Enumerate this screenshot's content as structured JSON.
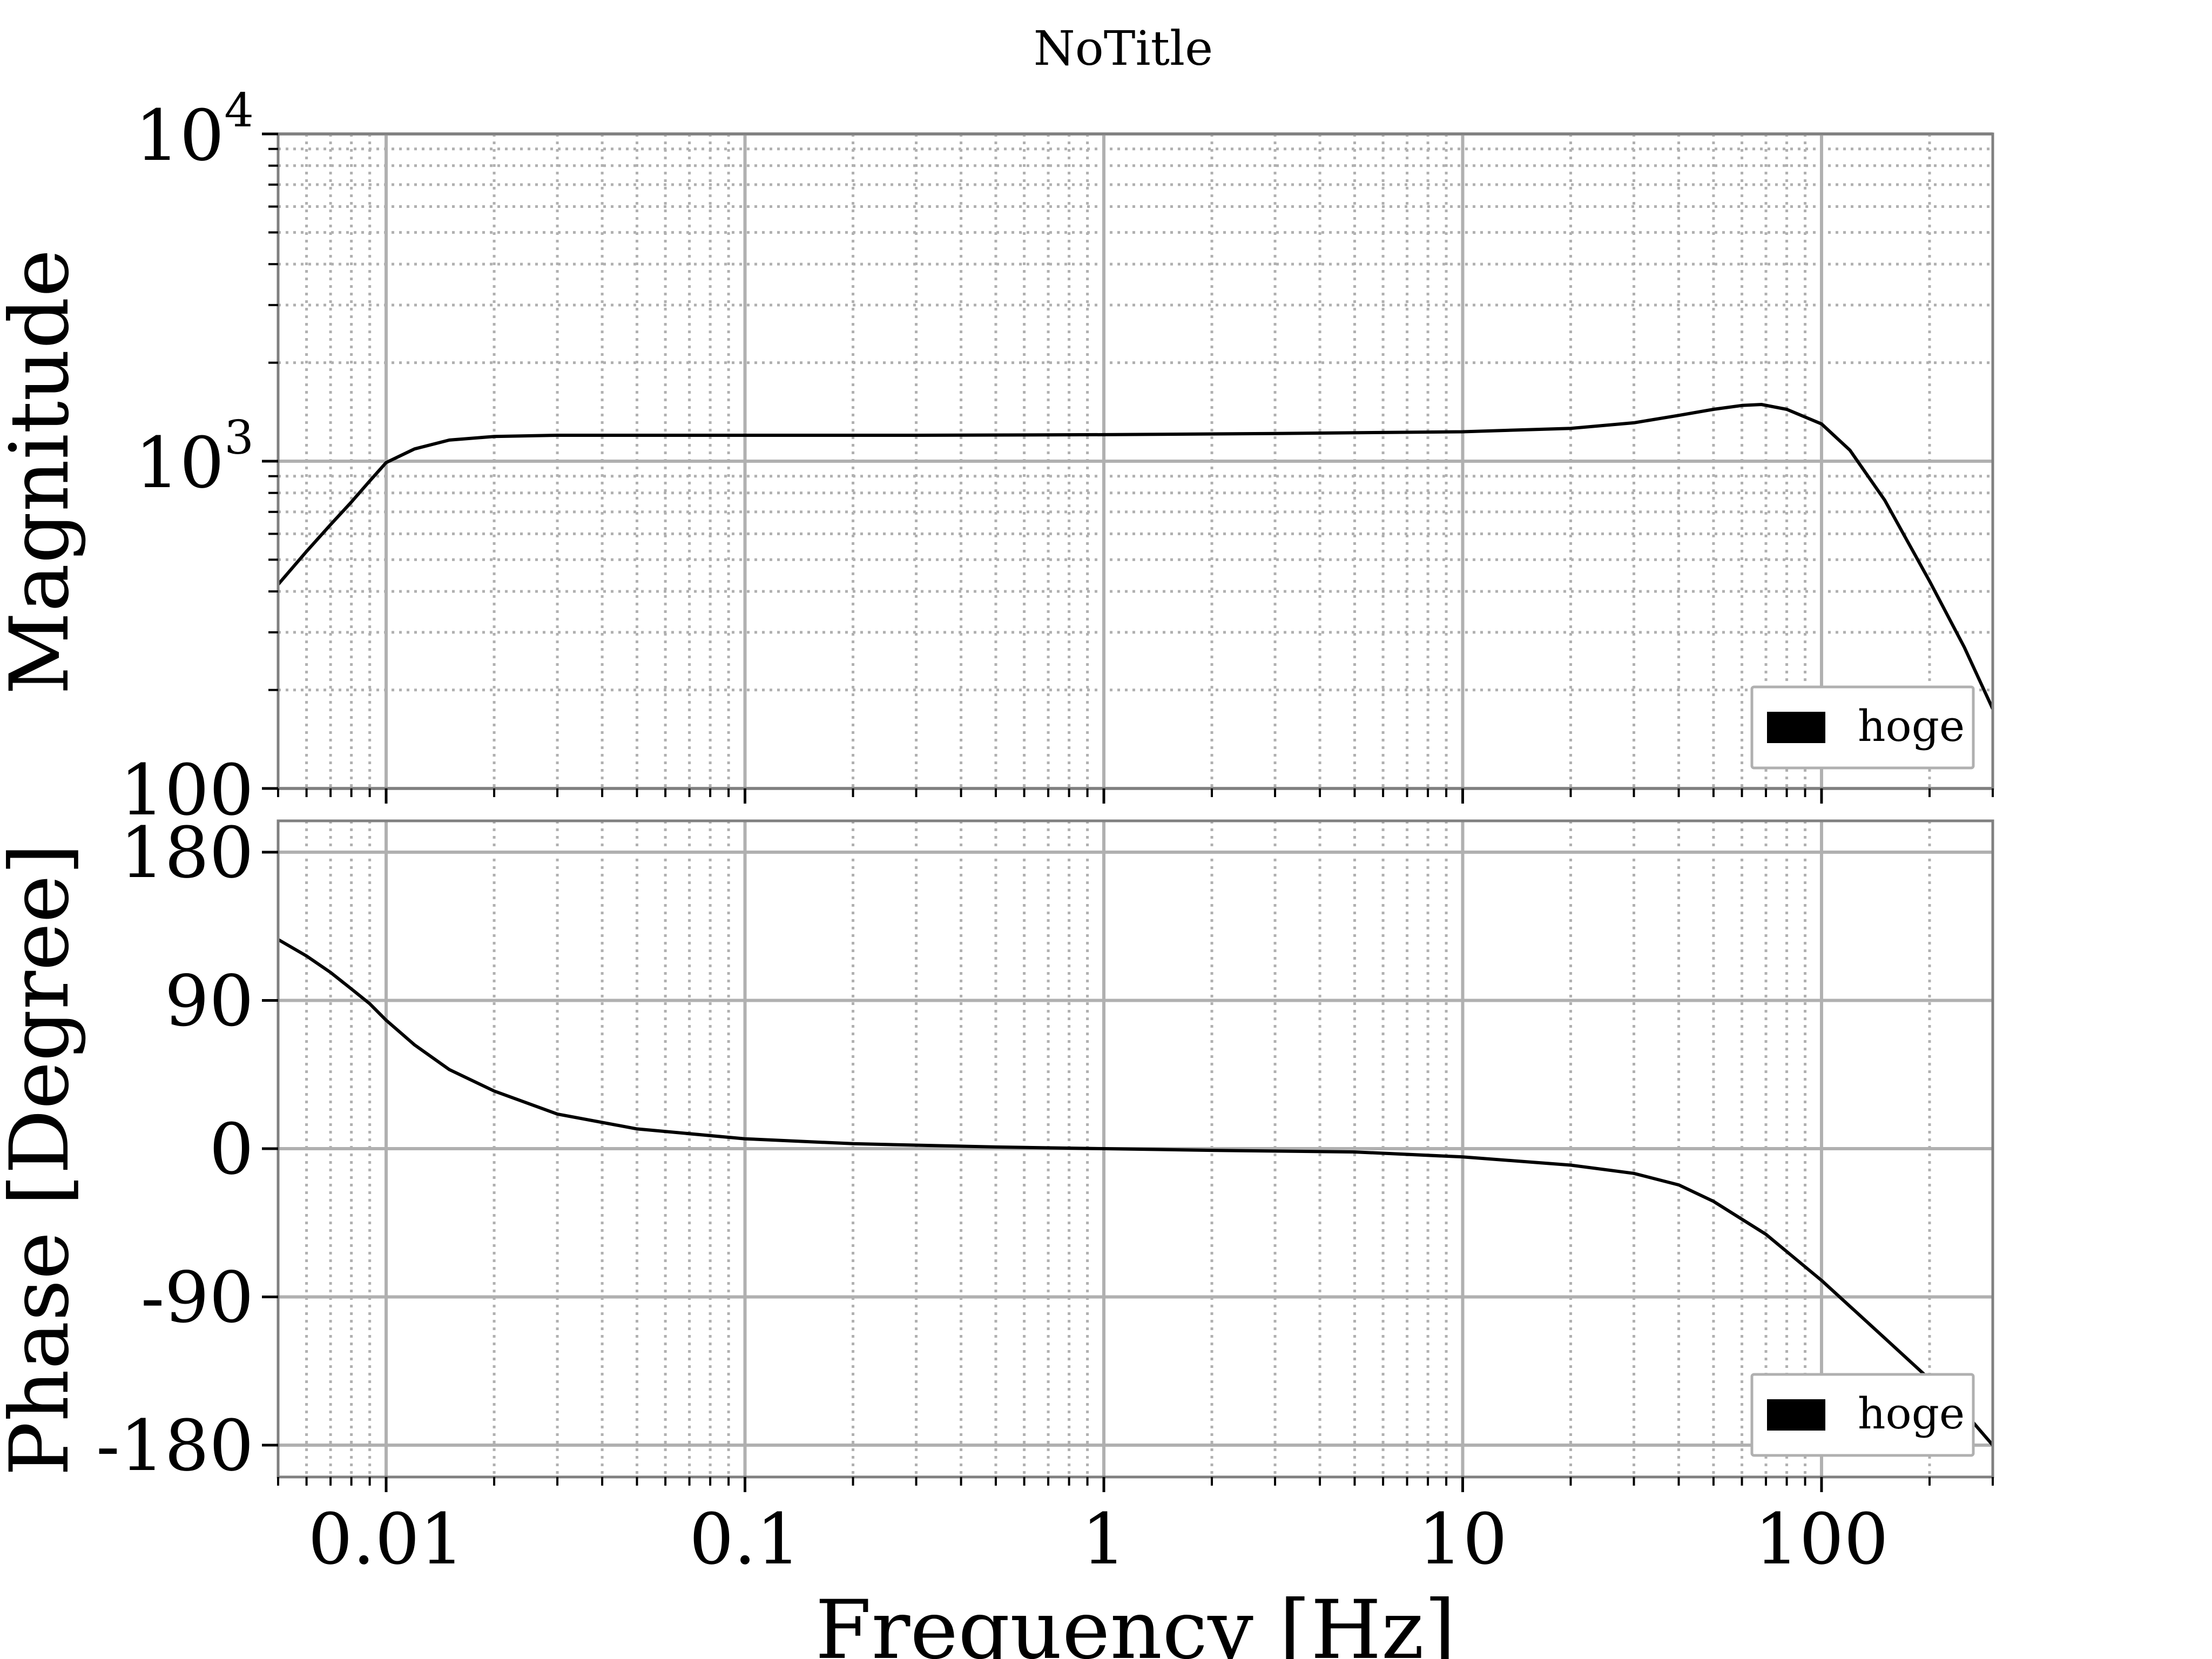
{
  "title": "NoTitle",
  "colors": {
    "grid": "#b0b0b0",
    "line": "#000000",
    "spine": "#808080",
    "legend_border": "#b0b0b0"
  },
  "chart_data": [
    {
      "type": "line",
      "panel": "magnitude",
      "title": "NoTitle",
      "xlabel": "",
      "ylabel": "Magnitude",
      "xscale": "log",
      "yscale": "log",
      "xlim": [
        0.005,
        300
      ],
      "ylim": [
        100,
        10000
      ],
      "x_ticks": [
        0.01,
        0.1,
        1,
        10,
        100
      ],
      "y_ticks": [
        100,
        1000,
        10000
      ],
      "y_tick_labels": [
        {
          "base": "100",
          "exp": ""
        },
        {
          "base": "10",
          "exp": "3"
        },
        {
          "base": "10",
          "exp": "4"
        }
      ],
      "grid": true,
      "legend": {
        "entries": [
          "hoge"
        ],
        "position": "bottom-right"
      },
      "series": [
        {
          "name": "hoge",
          "x": [
            0.005,
            0.006,
            0.007,
            0.008,
            0.009,
            0.01,
            0.012,
            0.015,
            0.02,
            0.03,
            0.05,
            0.1,
            0.3,
            1,
            3,
            10,
            20,
            30,
            40,
            50,
            60,
            68,
            80,
            100,
            120,
            150,
            200,
            250,
            300
          ],
          "y": [
            420,
            530,
            640,
            750,
            870,
            990,
            1090,
            1160,
            1190,
            1200,
            1200,
            1200,
            1200,
            1205,
            1215,
            1230,
            1260,
            1310,
            1380,
            1440,
            1480,
            1490,
            1440,
            1300,
            1080,
            760,
            430,
            270,
            175
          ]
        }
      ]
    },
    {
      "type": "line",
      "panel": "phase",
      "xlabel": "Frequency [Hz]",
      "ylabel": "Phase [Degree]",
      "xscale": "log",
      "xlim": [
        0.005,
        300
      ],
      "ylim": [
        -200,
        200
      ],
      "x_ticks": [
        0.01,
        0.1,
        1,
        10,
        100
      ],
      "x_tick_labels": [
        "0.01",
        "0.1",
        "1",
        "10",
        "100"
      ],
      "y_ticks": [
        -180,
        -90,
        0,
        90,
        180
      ],
      "y_tick_labels": [
        "-180",
        "-90",
        "0",
        "90",
        "180"
      ],
      "grid": true,
      "legend": {
        "entries": [
          "hoge"
        ],
        "position": "bottom-right"
      },
      "series": [
        {
          "name": "hoge",
          "x": [
            0.005,
            0.006,
            0.007,
            0.008,
            0.009,
            0.01,
            0.012,
            0.015,
            0.02,
            0.03,
            0.05,
            0.1,
            0.2,
            0.5,
            1,
            2,
            5,
            10,
            20,
            30,
            40,
            50,
            70,
            100,
            150,
            200,
            250,
            300
          ],
          "y": [
            127,
            117,
            107,
            97,
            88,
            78,
            63,
            48,
            35,
            21,
            12,
            6,
            3,
            1,
            0,
            -1,
            -2,
            -5,
            -10,
            -15,
            -22,
            -32,
            -52,
            -80,
            -115,
            -140,
            -160,
            -180
          ]
        }
      ]
    }
  ]
}
